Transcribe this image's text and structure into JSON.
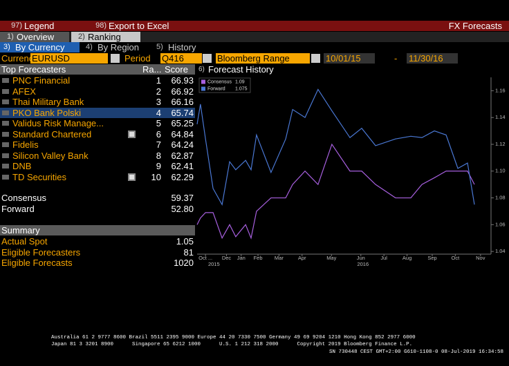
{
  "toolbar": {
    "legend_key": "97)",
    "legend": "Legend",
    "export_key": "98)",
    "export": "Export to Excel",
    "title": "FX Forecasts"
  },
  "tabs": [
    {
      "key": "1)",
      "label": "Overview"
    },
    {
      "key": "2)",
      "label": "Ranking"
    }
  ],
  "subtabs": [
    {
      "key": "3)",
      "label": "By Currency",
      "active": true
    },
    {
      "key": "4)",
      "label": "By Region"
    },
    {
      "key": "5)",
      "label": "History"
    }
  ],
  "filters": {
    "currency_label": "Currency",
    "currency": "EURUSD",
    "period_label": "Period",
    "period": "Q416",
    "range": "Bloomberg Range",
    "start": "10/01/15",
    "separator": "-",
    "end": "11/30/16"
  },
  "table": {
    "headers": [
      "Top Forecasters",
      "Ra...",
      "Score"
    ],
    "rows": [
      {
        "name": "PNC Financial",
        "rank": "1",
        "score": "66.93"
      },
      {
        "name": "AFEX",
        "rank": "2",
        "score": "66.92"
      },
      {
        "name": "Thai Military Bank",
        "rank": "3",
        "score": "66.16"
      },
      {
        "name": "PKO Bank Polski",
        "rank": "4",
        "score": "65.74",
        "selected": true
      },
      {
        "name": "Validus Risk Manage...",
        "rank": "5",
        "score": "65.25"
      },
      {
        "name": "Standard Chartered",
        "rank": "6",
        "score": "64.84",
        "note": true
      },
      {
        "name": "Fidelis",
        "rank": "7",
        "score": "64.24"
      },
      {
        "name": "Silicon Valley Bank",
        "rank": "8",
        "score": "62.87"
      },
      {
        "name": "DNB",
        "rank": "9",
        "score": "62.41"
      },
      {
        "name": "TD Securities",
        "rank": "10",
        "score": "62.29",
        "note": true
      }
    ]
  },
  "totals": [
    {
      "label": "Consensus",
      "value": "59.37"
    },
    {
      "label": "Forward",
      "value": "52.80"
    }
  ],
  "summary": {
    "title": "Summary",
    "rows": [
      {
        "label": "Actual Spot",
        "value": "1.05"
      },
      {
        "label": "Eligible Forecasters",
        "value": "81"
      },
      {
        "label": "Eligible Forecasts",
        "value": "1020"
      }
    ]
  },
  "chart_data": {
    "type": "line",
    "key": "6)",
    "title": "Forecast History",
    "xlim": [
      0,
      14
    ],
    "xticks": [
      {
        "value": 0.4,
        "label": "Oct ..."
      },
      {
        "value": 1.4,
        "label": "Dec"
      },
      {
        "value": 2.1,
        "label": "Jan"
      },
      {
        "value": 2.9,
        "label": "Feb"
      },
      {
        "value": 3.9,
        "label": "Mar"
      },
      {
        "value": 5.0,
        "label": "Apr"
      },
      {
        "value": 6.4,
        "label": "May"
      },
      {
        "value": 7.8,
        "label": "Jun"
      },
      {
        "value": 8.9,
        "label": "Jul"
      },
      {
        "value": 10.0,
        "label": "Aug"
      },
      {
        "value": 11.2,
        "label": "Sep"
      },
      {
        "value": 12.3,
        "label": "Oct"
      },
      {
        "value": 13.5,
        "label": "Nov"
      }
    ],
    "year_ticks": [
      {
        "value": 0.8,
        "label": "2015"
      },
      {
        "value": 7.9,
        "label": "2016"
      }
    ],
    "ylim": [
      1.038,
      1.17
    ],
    "yticks": [
      1.04,
      1.06,
      1.08,
      {
        "value": 1.1,
        "label": "1.10"
      },
      1.12,
      1.14,
      1.16
    ],
    "series": [
      {
        "name": "Consensus",
        "color": "#a860e0",
        "last_label": "1.09",
        "x": [
          0,
          0.16,
          0.4,
          0.76,
          1.19,
          1.55,
          1.84,
          2.31,
          2.57,
          2.83,
          3.52,
          4.22,
          4.55,
          5.14,
          5.76,
          6.42,
          7.28,
          7.84,
          8.5,
          9.45,
          10.18,
          10.71,
          11.3,
          11.86,
          12.42,
          12.88,
          13.21
        ],
        "values": [
          1.06,
          1.065,
          1.069,
          1.069,
          1.05,
          1.06,
          1.051,
          1.06,
          1.05,
          1.07,
          1.08,
          1.08,
          1.09,
          1.1,
          1.09,
          1.12,
          1.1,
          1.1,
          1.09,
          1.08,
          1.08,
          1.09,
          1.095,
          1.1,
          1.1,
          1.1,
          1.09
        ]
      },
      {
        "name": "Forward",
        "color": "#4a78d4",
        "last_label": "1.075",
        "x": [
          0,
          0.16,
          0.4,
          0.76,
          1.19,
          1.55,
          1.84,
          2.31,
          2.57,
          2.83,
          3.52,
          4.22,
          4.55,
          5.14,
          5.76,
          6.42,
          7.28,
          7.84,
          8.5,
          9.45,
          10.18,
          10.71,
          11.3,
          11.86,
          12.42,
          12.88,
          13.21
        ],
        "values": [
          1.135,
          1.15,
          1.124,
          1.087,
          1.075,
          1.107,
          1.101,
          1.108,
          1.101,
          1.127,
          1.099,
          1.124,
          1.146,
          1.14,
          1.161,
          1.145,
          1.125,
          1.132,
          1.119,
          1.124,
          1.126,
          1.125,
          1.13,
          1.127,
          1.102,
          1.106,
          1.075
        ]
      }
    ]
  },
  "footer": {
    "lines": [
      "Australia 61 2 9777 8600 Brazil 5511 2395 9000 Europe 44 20 7330 7500 Germany 49 69 9204 1210 Hong Kong 852 2977 6000",
      "Japan 81 3 3201 8900      Singapore 65 6212 1000      U.S. 1 212 318 2000      Copyright 2019 Bloomberg Finance L.P."
    ],
    "session": "SN 730448 CEST GMT+2:00 G610-1108-0 08-Jul-2019 16:34:58"
  }
}
